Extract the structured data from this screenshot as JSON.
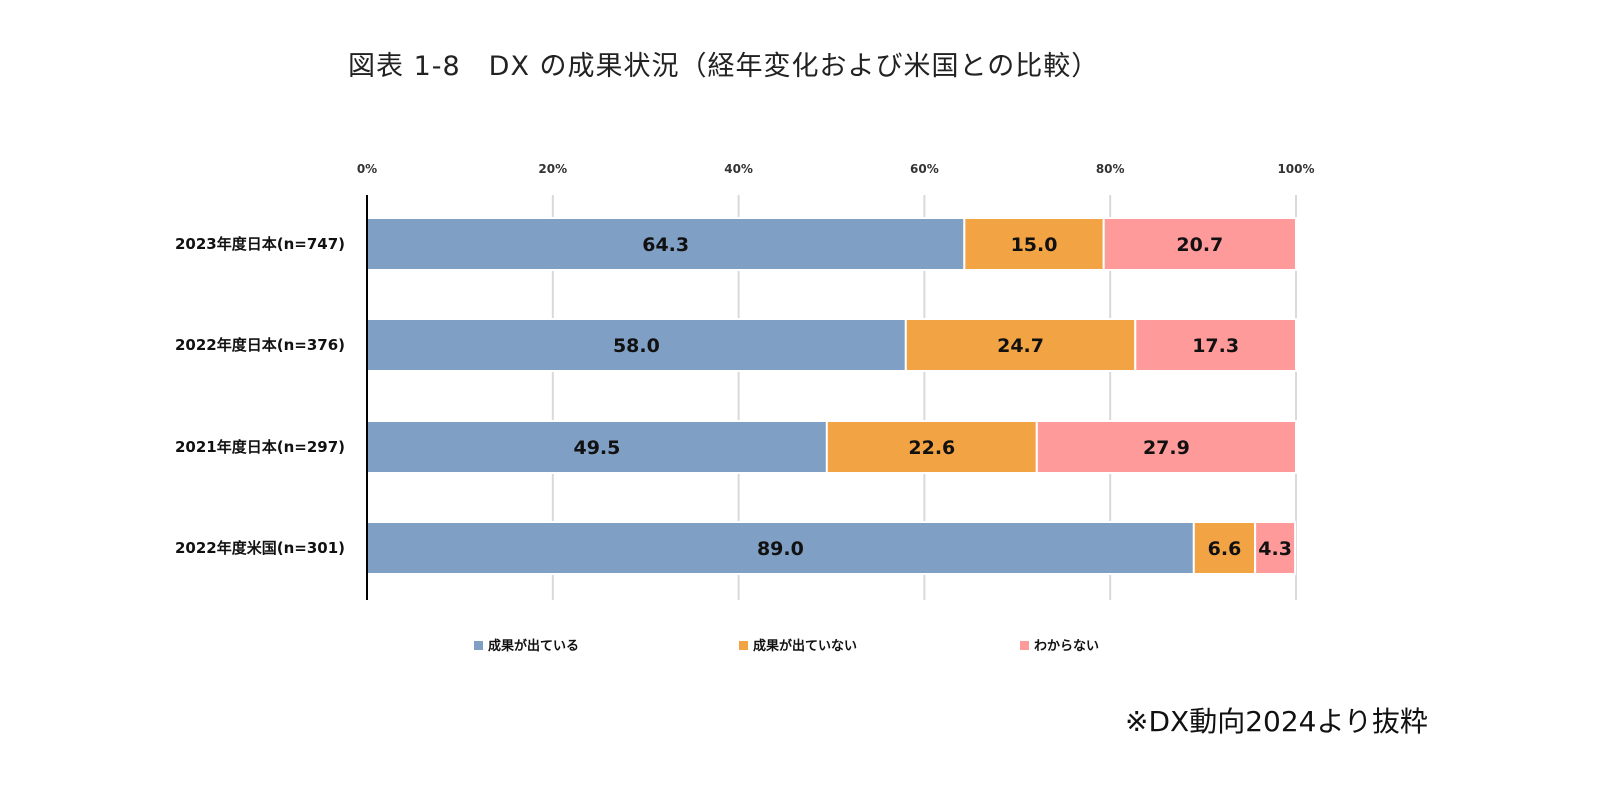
{
  "chart_data": {
    "type": "bar",
    "orientation": "horizontal",
    "stacked": true,
    "title": "図表 1-8　DX の成果状況（経年変化および米国との比較）",
    "categories": [
      "2023年度日本(n=747)",
      "2022年度日本(n=376)",
      "2021年度日本(n=297)",
      "2022年度米国(n=301)"
    ],
    "series": [
      {
        "name": "成果が出ている",
        "color": "#7f9fc4",
        "values": [
          64.3,
          58.0,
          49.5,
          89.0
        ]
      },
      {
        "name": "成果が出ていない",
        "color": "#f2a444",
        "values": [
          15.0,
          24.7,
          22.6,
          6.6
        ]
      },
      {
        "name": "わからない",
        "color": "#ff9a9a",
        "values": [
          20.7,
          17.3,
          27.9,
          4.3
        ]
      }
    ],
    "xticks": [
      "0%",
      "20%",
      "40%",
      "60%",
      "80%",
      "100%"
    ],
    "xlim": [
      0,
      100
    ],
    "grid": true,
    "legend": "bottom",
    "xlabel": "",
    "ylabel": ""
  },
  "source_note": "※DX動向2024より抜粋"
}
